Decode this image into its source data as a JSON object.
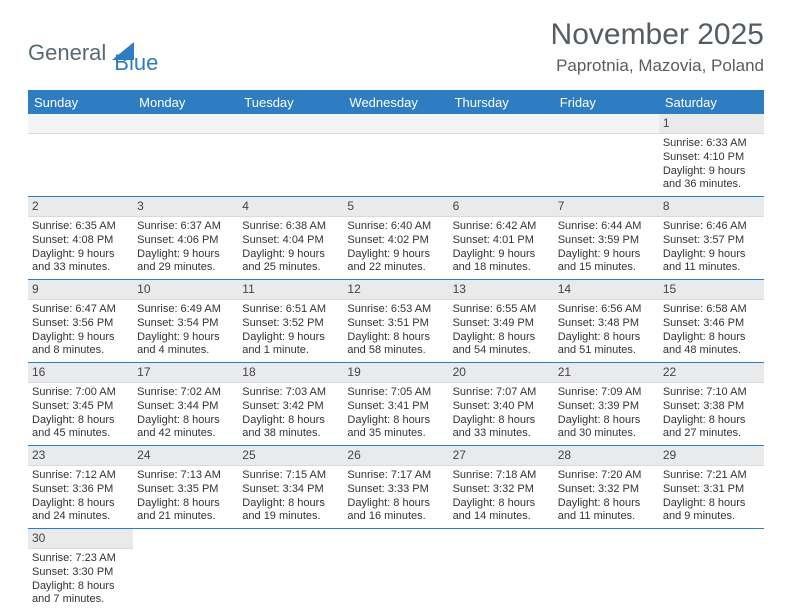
{
  "logo": {
    "part1": "General",
    "part2": "Blue"
  },
  "title": "November 2025",
  "location": "Paprotnia, Mazovia, Poland",
  "colors": {
    "header_bg": "#2e7cc1",
    "header_text": "#ffffff",
    "daynum_bg": "#e9eaec",
    "row_border": "#2e7cc1",
    "text": "#333333",
    "title_text": "#555d63"
  },
  "fonts": {
    "title_size": 30,
    "location_size": 17,
    "header_size": 13,
    "body_size": 11
  },
  "dayHeaders": [
    "Sunday",
    "Monday",
    "Tuesday",
    "Wednesday",
    "Thursday",
    "Friday",
    "Saturday"
  ],
  "weeks": [
    [
      {
        "n": "",
        "lines": []
      },
      {
        "n": "",
        "lines": []
      },
      {
        "n": "",
        "lines": []
      },
      {
        "n": "",
        "lines": []
      },
      {
        "n": "",
        "lines": []
      },
      {
        "n": "",
        "lines": []
      },
      {
        "n": "1",
        "lines": [
          "Sunrise: 6:33 AM",
          "Sunset: 4:10 PM",
          "Daylight: 9 hours",
          "and 36 minutes."
        ]
      }
    ],
    [
      {
        "n": "2",
        "lines": [
          "Sunrise: 6:35 AM",
          "Sunset: 4:08 PM",
          "Daylight: 9 hours",
          "and 33 minutes."
        ]
      },
      {
        "n": "3",
        "lines": [
          "Sunrise: 6:37 AM",
          "Sunset: 4:06 PM",
          "Daylight: 9 hours",
          "and 29 minutes."
        ]
      },
      {
        "n": "4",
        "lines": [
          "Sunrise: 6:38 AM",
          "Sunset: 4:04 PM",
          "Daylight: 9 hours",
          "and 25 minutes."
        ]
      },
      {
        "n": "5",
        "lines": [
          "Sunrise: 6:40 AM",
          "Sunset: 4:02 PM",
          "Daylight: 9 hours",
          "and 22 minutes."
        ]
      },
      {
        "n": "6",
        "lines": [
          "Sunrise: 6:42 AM",
          "Sunset: 4:01 PM",
          "Daylight: 9 hours",
          "and 18 minutes."
        ]
      },
      {
        "n": "7",
        "lines": [
          "Sunrise: 6:44 AM",
          "Sunset: 3:59 PM",
          "Daylight: 9 hours",
          "and 15 minutes."
        ]
      },
      {
        "n": "8",
        "lines": [
          "Sunrise: 6:46 AM",
          "Sunset: 3:57 PM",
          "Daylight: 9 hours",
          "and 11 minutes."
        ]
      }
    ],
    [
      {
        "n": "9",
        "lines": [
          "Sunrise: 6:47 AM",
          "Sunset: 3:56 PM",
          "Daylight: 9 hours",
          "and 8 minutes."
        ]
      },
      {
        "n": "10",
        "lines": [
          "Sunrise: 6:49 AM",
          "Sunset: 3:54 PM",
          "Daylight: 9 hours",
          "and 4 minutes."
        ]
      },
      {
        "n": "11",
        "lines": [
          "Sunrise: 6:51 AM",
          "Sunset: 3:52 PM",
          "Daylight: 9 hours",
          "and 1 minute."
        ]
      },
      {
        "n": "12",
        "lines": [
          "Sunrise: 6:53 AM",
          "Sunset: 3:51 PM",
          "Daylight: 8 hours",
          "and 58 minutes."
        ]
      },
      {
        "n": "13",
        "lines": [
          "Sunrise: 6:55 AM",
          "Sunset: 3:49 PM",
          "Daylight: 8 hours",
          "and 54 minutes."
        ]
      },
      {
        "n": "14",
        "lines": [
          "Sunrise: 6:56 AM",
          "Sunset: 3:48 PM",
          "Daylight: 8 hours",
          "and 51 minutes."
        ]
      },
      {
        "n": "15",
        "lines": [
          "Sunrise: 6:58 AM",
          "Sunset: 3:46 PM",
          "Daylight: 8 hours",
          "and 48 minutes."
        ]
      }
    ],
    [
      {
        "n": "16",
        "lines": [
          "Sunrise: 7:00 AM",
          "Sunset: 3:45 PM",
          "Daylight: 8 hours",
          "and 45 minutes."
        ]
      },
      {
        "n": "17",
        "lines": [
          "Sunrise: 7:02 AM",
          "Sunset: 3:44 PM",
          "Daylight: 8 hours",
          "and 42 minutes."
        ]
      },
      {
        "n": "18",
        "lines": [
          "Sunrise: 7:03 AM",
          "Sunset: 3:42 PM",
          "Daylight: 8 hours",
          "and 38 minutes."
        ]
      },
      {
        "n": "19",
        "lines": [
          "Sunrise: 7:05 AM",
          "Sunset: 3:41 PM",
          "Daylight: 8 hours",
          "and 35 minutes."
        ]
      },
      {
        "n": "20",
        "lines": [
          "Sunrise: 7:07 AM",
          "Sunset: 3:40 PM",
          "Daylight: 8 hours",
          "and 33 minutes."
        ]
      },
      {
        "n": "21",
        "lines": [
          "Sunrise: 7:09 AM",
          "Sunset: 3:39 PM",
          "Daylight: 8 hours",
          "and 30 minutes."
        ]
      },
      {
        "n": "22",
        "lines": [
          "Sunrise: 7:10 AM",
          "Sunset: 3:38 PM",
          "Daylight: 8 hours",
          "and 27 minutes."
        ]
      }
    ],
    [
      {
        "n": "23",
        "lines": [
          "Sunrise: 7:12 AM",
          "Sunset: 3:36 PM",
          "Daylight: 8 hours",
          "and 24 minutes."
        ]
      },
      {
        "n": "24",
        "lines": [
          "Sunrise: 7:13 AM",
          "Sunset: 3:35 PM",
          "Daylight: 8 hours",
          "and 21 minutes."
        ]
      },
      {
        "n": "25",
        "lines": [
          "Sunrise: 7:15 AM",
          "Sunset: 3:34 PM",
          "Daylight: 8 hours",
          "and 19 minutes."
        ]
      },
      {
        "n": "26",
        "lines": [
          "Sunrise: 7:17 AM",
          "Sunset: 3:33 PM",
          "Daylight: 8 hours",
          "and 16 minutes."
        ]
      },
      {
        "n": "27",
        "lines": [
          "Sunrise: 7:18 AM",
          "Sunset: 3:32 PM",
          "Daylight: 8 hours",
          "and 14 minutes."
        ]
      },
      {
        "n": "28",
        "lines": [
          "Sunrise: 7:20 AM",
          "Sunset: 3:32 PM",
          "Daylight: 8 hours",
          "and 11 minutes."
        ]
      },
      {
        "n": "29",
        "lines": [
          "Sunrise: 7:21 AM",
          "Sunset: 3:31 PM",
          "Daylight: 8 hours",
          "and 9 minutes."
        ]
      }
    ],
    [
      {
        "n": "30",
        "lines": [
          "Sunrise: 7:23 AM",
          "Sunset: 3:30 PM",
          "Daylight: 8 hours",
          "and 7 minutes."
        ]
      },
      {
        "n": "",
        "lines": []
      },
      {
        "n": "",
        "lines": []
      },
      {
        "n": "",
        "lines": []
      },
      {
        "n": "",
        "lines": []
      },
      {
        "n": "",
        "lines": []
      },
      {
        "n": "",
        "lines": []
      }
    ]
  ]
}
